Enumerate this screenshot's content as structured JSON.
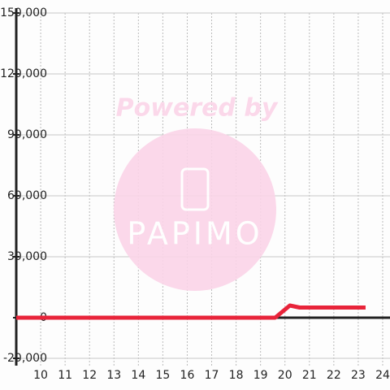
{
  "chart_data": {
    "type": "line",
    "watermark": {
      "line1": "Powered by",
      "line2": "PAPIMO"
    },
    "x": [
      9,
      19.4,
      19.6,
      20.2,
      20.6,
      23.3
    ],
    "series": [
      {
        "color": "#e8243a",
        "values": [
          0,
          0,
          0,
          6000,
          5000,
          5000
        ]
      }
    ],
    "xlim": [
      9,
      24.3
    ],
    "xticks": [
      10,
      11,
      12,
      13,
      14,
      15,
      16,
      17,
      18,
      19,
      20,
      21,
      22,
      23,
      24
    ],
    "ylim": [
      -20000,
      150000
    ],
    "yticks": [
      {
        "value": -20000,
        "label": "-20,000"
      },
      0,
      {
        "value": 30000,
        "label": "30,000"
      },
      {
        "value": 60000,
        "label": "60,000"
      },
      {
        "value": 90000,
        "label": "90,000"
      },
      {
        "value": 120000,
        "label": "120,000"
      },
      {
        "value": 150000,
        "label": "150,000"
      }
    ],
    "grid": true
  }
}
